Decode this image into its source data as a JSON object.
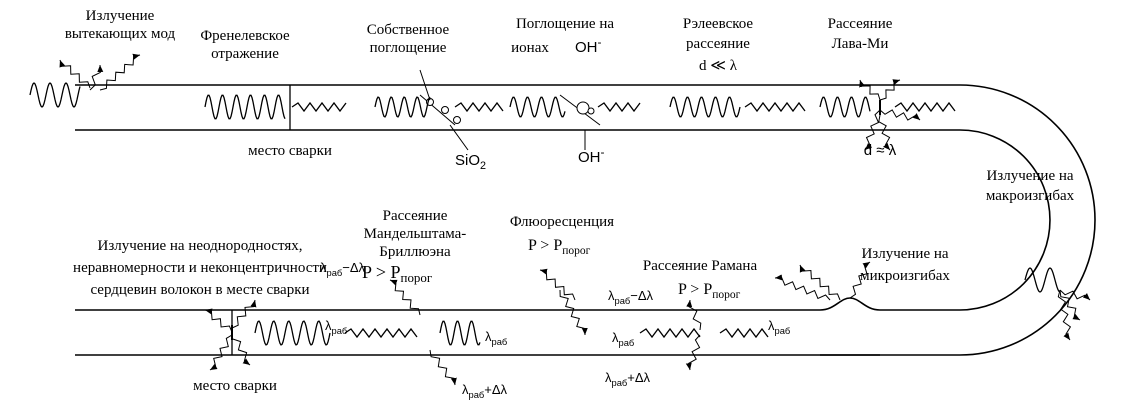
{
  "labels": {
    "leaky_modes": [
      "Излучение",
      "вытекающих мод"
    ],
    "fresnel": [
      "Френелевское",
      "отражение"
    ],
    "intrinsic": [
      "Собственное",
      "поглощение"
    ],
    "oh_abs": [
      "Поглощение на",
      "ионах"
    ],
    "oh_top": {
      "base": "OH",
      "sup": "-"
    },
    "rayleigh": [
      "Рэлеевское",
      "рассеяние",
      "d ≪ λ"
    ],
    "mie": [
      "Рассеяние",
      "Лава-Ми"
    ],
    "splice_top": "место сварки",
    "sio2": {
      "base": "SiO",
      "sub": "2"
    },
    "oh_bottom": {
      "base": "OH",
      "sup": "-"
    },
    "mie_size": "d ≈ λ",
    "macrobend": [
      "Излучение на",
      "макроизгибах"
    ],
    "microbend": [
      "Излучение на",
      "микроизгибах"
    ],
    "brillouin": [
      "Рассеяние",
      "Мандельштама-",
      "Бриллюэна"
    ],
    "brillouin_threshold": {
      "base": "P > P",
      "sub": "порог"
    },
    "fluorescence": "Флюоресценция",
    "fluorescence_threshold": {
      "base": "P > P",
      "sub": "порог"
    },
    "raman": "Рассеяние Рамана",
    "raman_threshold": {
      "base": "P > P",
      "sub": "порог"
    },
    "inhomogeneity": [
      "Излучение на неоднородностях,",
      "неравномерности и неконцентричности",
      "сердцевин волокон в месте сварки"
    ],
    "splice_bottom": "место сварки",
    "wavelengths": [
      {
        "base": "λ",
        "sub": "раб",
        "suffix": "−Δλ"
      },
      {
        "base": "λ",
        "sub": "раб"
      },
      {
        "base": "λ",
        "sub": "раб"
      },
      {
        "base": "λ",
        "sub": "раб",
        "suffix": "+Δλ"
      },
      {
        "base": "λ",
        "sub": "раб",
        "suffix": "−Δλ"
      },
      {
        "base": "λ",
        "sub": "раб"
      },
      {
        "base": "λ",
        "sub": "раб"
      },
      {
        "base": "λ",
        "sub": "раб",
        "suffix": "+Δλ"
      }
    ]
  }
}
